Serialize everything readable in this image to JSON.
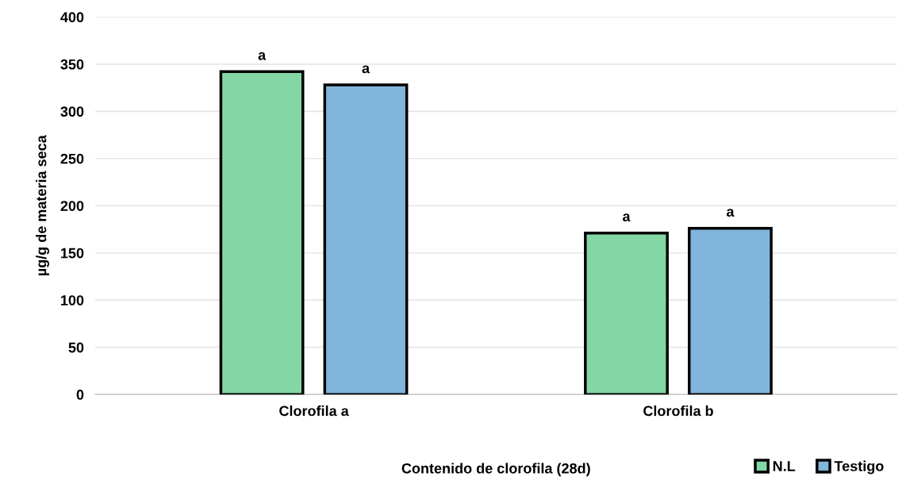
{
  "chart_data": {
    "type": "bar",
    "xlabel": "Contenido de clorofila (28d)",
    "ylabel": "µg/g de materia seca",
    "categories": [
      "Clorofila a",
      "Clorofila b"
    ],
    "series": [
      {
        "name": "N.L",
        "color": "#82d7a5",
        "values": [
          342,
          171
        ],
        "value_labels": [
          "a",
          "a"
        ]
      },
      {
        "name": "Testigo",
        "color": "#80b5dc",
        "values": [
          328,
          176
        ],
        "value_labels": [
          "a",
          "a"
        ]
      }
    ],
    "ylim": [
      0,
      400
    ],
    "yticks": [
      0,
      50,
      100,
      150,
      200,
      250,
      300,
      350,
      400
    ],
    "grid": "y",
    "legend": "bottom right"
  }
}
